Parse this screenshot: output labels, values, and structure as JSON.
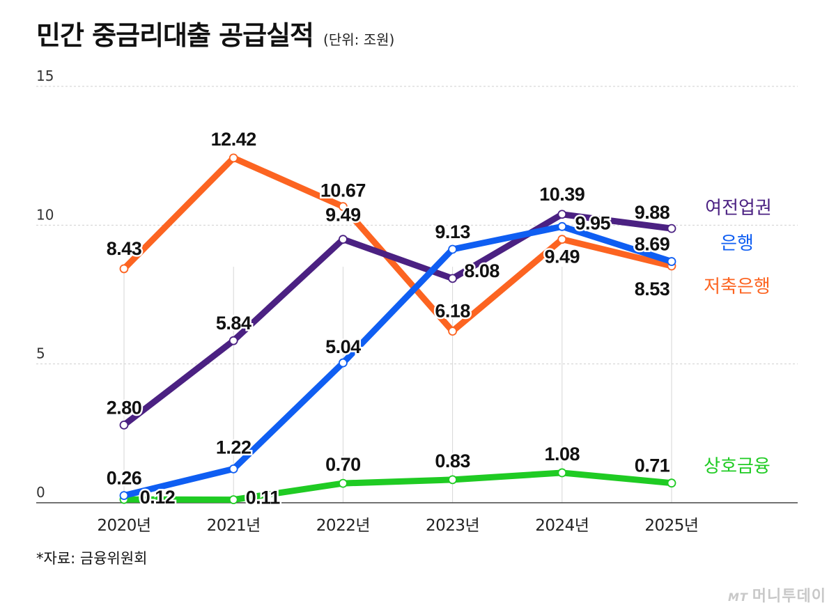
{
  "title": "민간 중금리대출 공급실적",
  "subtitle": "(단위: 조원)",
  "source": "*자료: 금융위원회",
  "credit_brand": "MT",
  "credit_name": "머니투데이",
  "chart_data": {
    "type": "line",
    "title": "민간 중금리대출 공급실적",
    "subtitle": "(단위: 조원)",
    "categories": [
      "2020년",
      "2021년",
      "2022년",
      "2023년",
      "2024년",
      "2025년"
    ],
    "ylim": [
      0,
      15
    ],
    "yticks": [
      "0",
      "5",
      "10",
      "15"
    ],
    "grid": true,
    "legend": "right, inline labels at series ends",
    "series": [
      {
        "name": "여전업권",
        "color": "#4b2182",
        "values": [
          2.8,
          5.84,
          9.49,
          8.08,
          10.39,
          9.88
        ],
        "labels": [
          "2.80",
          "5.84",
          "9.49",
          "8.08",
          "10.39",
          "9.88"
        ]
      },
      {
        "name": "은행",
        "color": "#0f5ef2",
        "values": [
          0.26,
          1.22,
          5.04,
          9.13,
          9.95,
          8.69
        ],
        "labels": [
          "0.26",
          "1.22",
          "5.04",
          "9.13",
          "9.95",
          "8.69"
        ]
      },
      {
        "name": "저축은행",
        "color": "#fc6421",
        "values": [
          8.43,
          12.42,
          10.67,
          6.18,
          9.49,
          8.53
        ],
        "labels": [
          "8.43",
          "12.42",
          "10.67",
          "6.18",
          "9.49",
          "8.53"
        ]
      },
      {
        "name": "상호금융",
        "color": "#1fcb23",
        "values": [
          0.12,
          0.11,
          0.7,
          0.83,
          1.08,
          0.71
        ],
        "labels": [
          "0.12",
          "0.11",
          "0.70",
          "0.83",
          "1.08",
          "0.71"
        ]
      }
    ]
  }
}
